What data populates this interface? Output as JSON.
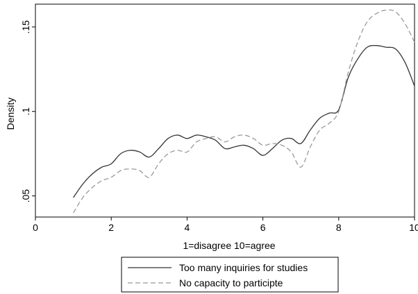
{
  "chart_data": {
    "type": "line",
    "xlabel": "1=disagree 10=agree",
    "ylabel": "Density",
    "xlim": [
      0,
      10
    ],
    "ylim": [
      0.0375,
      0.1635
    ],
    "xticks": [
      0,
      2,
      4,
      6,
      8,
      10
    ],
    "xtick_labels": [
      "0",
      "2",
      "4",
      "6",
      "8",
      "10"
    ],
    "yticks": [
      0.05,
      0.1,
      0.15
    ],
    "ytick_labels": [
      ".05",
      ".1",
      ".15"
    ],
    "grid": false,
    "legend_position": "bottom",
    "series": [
      {
        "name": "Too many inquiries for studies",
        "style": "solid",
        "color": "#333333",
        "x": [
          1.0,
          1.25,
          1.5,
          1.75,
          2.0,
          2.25,
          2.5,
          2.75,
          3.0,
          3.25,
          3.5,
          3.75,
          4.0,
          4.25,
          4.5,
          4.75,
          5.0,
          5.25,
          5.5,
          5.75,
          6.0,
          6.25,
          6.5,
          6.75,
          7.0,
          7.25,
          7.5,
          7.75,
          8.0,
          8.25,
          8.5,
          8.75,
          9.0,
          9.25,
          9.5,
          9.75,
          10.0
        ],
        "y": [
          0.049,
          0.057,
          0.063,
          0.067,
          0.069,
          0.075,
          0.077,
          0.076,
          0.073,
          0.078,
          0.084,
          0.086,
          0.084,
          0.086,
          0.085,
          0.083,
          0.078,
          0.079,
          0.08,
          0.078,
          0.074,
          0.078,
          0.083,
          0.084,
          0.081,
          0.089,
          0.096,
          0.099,
          0.101,
          0.12,
          0.131,
          0.138,
          0.139,
          0.138,
          0.137,
          0.129,
          0.115
        ]
      },
      {
        "name": "No capacity to participte",
        "style": "dashed",
        "color": "#999999",
        "x": [
          1.0,
          1.25,
          1.5,
          1.75,
          2.0,
          2.25,
          2.5,
          2.75,
          3.0,
          3.25,
          3.5,
          3.75,
          4.0,
          4.25,
          4.5,
          4.75,
          5.0,
          5.25,
          5.5,
          5.75,
          6.0,
          6.25,
          6.5,
          6.75,
          7.0,
          7.25,
          7.5,
          7.75,
          8.0,
          8.25,
          8.5,
          8.75,
          9.0,
          9.25,
          9.5,
          9.75,
          10.0
        ],
        "y": [
          0.04,
          0.049,
          0.055,
          0.059,
          0.061,
          0.065,
          0.066,
          0.065,
          0.061,
          0.069,
          0.075,
          0.077,
          0.076,
          0.082,
          0.084,
          0.085,
          0.082,
          0.085,
          0.086,
          0.084,
          0.08,
          0.081,
          0.08,
          0.076,
          0.067,
          0.079,
          0.089,
          0.093,
          0.1,
          0.123,
          0.141,
          0.153,
          0.158,
          0.16,
          0.159,
          0.152,
          0.141
        ]
      }
    ]
  }
}
